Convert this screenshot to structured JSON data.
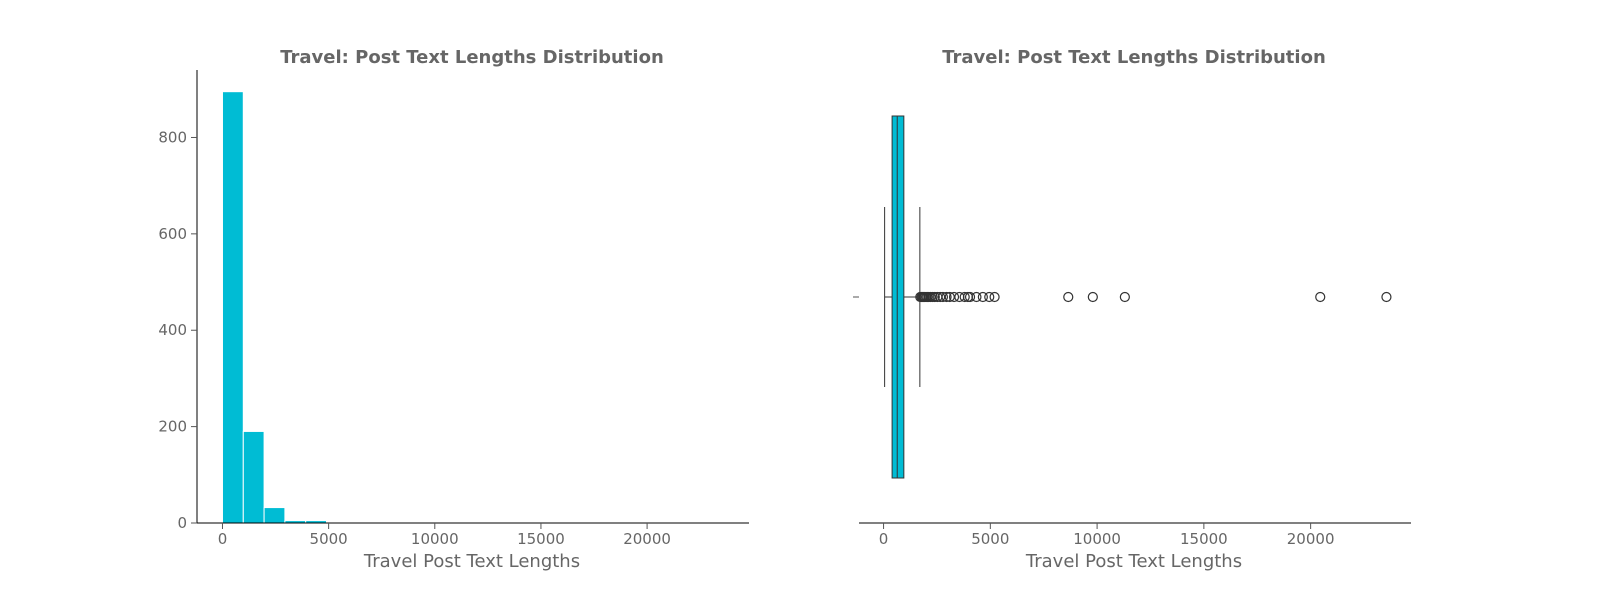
{
  "colors": {
    "bar": "#00bcd4",
    "box": "#00bcd4",
    "text": "#666666",
    "outline": "#333333"
  },
  "chart_data": [
    {
      "type": "histogram",
      "title": "Travel: Post Text Lengths Distribution",
      "xlabel": "Travel Post Text Lengths",
      "ylabel": "",
      "xlim": [
        -1200,
        24800
      ],
      "ylim": [
        0,
        940
      ],
      "xticks": [
        0,
        5000,
        10000,
        15000,
        20000
      ],
      "xtick_labels": [
        "0",
        "5000",
        "10000",
        "15000",
        "20000"
      ],
      "yticks": [
        0,
        200,
        400,
        600,
        800
      ],
      "ytick_labels": [
        "0",
        "200",
        "400",
        "600",
        "800"
      ],
      "bins": [
        {
          "start": 0,
          "end": 980,
          "count": 895
        },
        {
          "start": 980,
          "end": 1960,
          "count": 190
        },
        {
          "start": 1960,
          "end": 2940,
          "count": 32
        },
        {
          "start": 2940,
          "end": 3920,
          "count": 5
        },
        {
          "start": 3920,
          "end": 4900,
          "count": 5
        },
        {
          "start": 4900,
          "end": 5880,
          "count": 1
        },
        {
          "start": 5880,
          "end": 6860,
          "count": 0
        },
        {
          "start": 6860,
          "end": 7840,
          "count": 0
        },
        {
          "start": 7840,
          "end": 8820,
          "count": 1
        },
        {
          "start": 8820,
          "end": 9800,
          "count": 0
        },
        {
          "start": 9800,
          "end": 10780,
          "count": 1
        },
        {
          "start": 10780,
          "end": 11760,
          "count": 1
        },
        {
          "start": 11760,
          "end": 12740,
          "count": 0
        },
        {
          "start": 12740,
          "end": 13720,
          "count": 0
        },
        {
          "start": 13720,
          "end": 14700,
          "count": 0
        },
        {
          "start": 14700,
          "end": 15680,
          "count": 0
        },
        {
          "start": 15680,
          "end": 16660,
          "count": 0
        },
        {
          "start": 16660,
          "end": 17640,
          "count": 0
        },
        {
          "start": 17640,
          "end": 18620,
          "count": 0
        },
        {
          "start": 18620,
          "end": 19600,
          "count": 0
        },
        {
          "start": 19600,
          "end": 20580,
          "count": 1
        },
        {
          "start": 20580,
          "end": 21560,
          "count": 0
        },
        {
          "start": 21560,
          "end": 22540,
          "count": 0
        },
        {
          "start": 22540,
          "end": 23520,
          "count": 1
        }
      ]
    },
    {
      "type": "boxplot",
      "title": "Travel: Post Text Lengths Distribution",
      "xlabel": "Travel Post Text Lengths",
      "ylabel": "",
      "xlim": [
        -1150,
        24700
      ],
      "xticks": [
        0,
        5000,
        10000,
        15000,
        20000
      ],
      "xtick_labels": [
        "0",
        "5000",
        "10000",
        "15000",
        "20000"
      ],
      "ytick_labels": [
        ""
      ],
      "box": {
        "whisker_low": 50,
        "q1": 400,
        "median": 640,
        "q3": 950,
        "whisker_high": 1700
      },
      "outliers": [
        1720,
        1780,
        1830,
        1880,
        1930,
        1990,
        2050,
        2120,
        2200,
        2300,
        2400,
        2520,
        2650,
        2780,
        2950,
        3100,
        3300,
        3550,
        3800,
        3950,
        4050,
        4350,
        4650,
        4950,
        5200,
        8650,
        9800,
        11300,
        20450,
        23550
      ]
    }
  ]
}
